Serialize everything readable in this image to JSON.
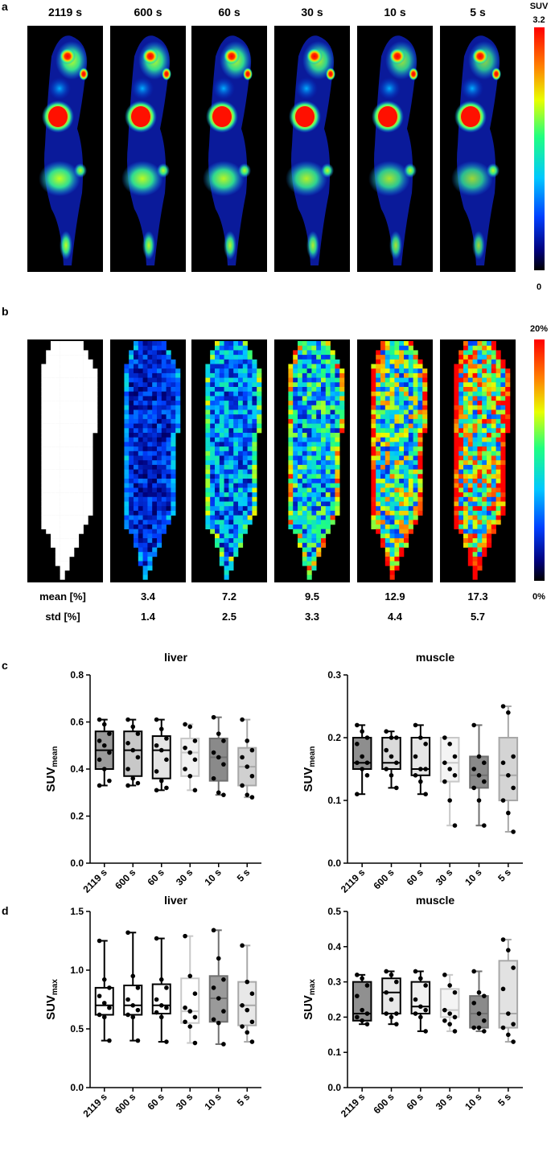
{
  "panels": {
    "a": "a",
    "b": "b",
    "c": "c",
    "d": "d"
  },
  "times": [
    "2119 s",
    "600 s",
    "60 s",
    "30 s",
    "10 s",
    "5 s"
  ],
  "colorbar_a": {
    "title": "SUV",
    "max": "3.2",
    "min": "0"
  },
  "colorbar_b": {
    "max": "20%",
    "min": "0%"
  },
  "stats": {
    "mean_label": "mean  [%]",
    "std_label": "std [%]",
    "mean": [
      "3.4",
      "7.2",
      "9.5",
      "12.9",
      "17.3"
    ],
    "std": [
      "1.4",
      "2.5",
      "3.3",
      "4.4",
      "5.7"
    ]
  },
  "colors": {
    "box_dark": "#707070",
    "box_mid": "#a0a0a0",
    "box_light": "#dcdcdc",
    "jet_red": "#ff0000",
    "jet_blue": "#0000b0"
  },
  "chart_data": [
    {
      "type": "box",
      "panel": "c",
      "title": "liver",
      "ylabel": "SUVmean",
      "ylim": [
        0,
        0.8
      ],
      "yticks": [
        "0.0",
        "0.2",
        "0.4",
        "0.6",
        "0.8"
      ],
      "categories": [
        "2119 s",
        "600 s",
        "60 s",
        "30 s",
        "10 s",
        "5 s"
      ],
      "boxes": [
        {
          "min": 0.33,
          "q1": 0.4,
          "median": 0.48,
          "q3": 0.56,
          "max": 0.61,
          "points": [
            0.61,
            0.59,
            0.55,
            0.52,
            0.5,
            0.47,
            0.44,
            0.4,
            0.35,
            0.33
          ]
        },
        {
          "min": 0.33,
          "q1": 0.37,
          "median": 0.48,
          "q3": 0.56,
          "max": 0.61,
          "points": [
            0.61,
            0.58,
            0.55,
            0.51,
            0.48,
            0.45,
            0.4,
            0.36,
            0.34,
            0.33
          ]
        },
        {
          "min": 0.31,
          "q1": 0.36,
          "median": 0.48,
          "q3": 0.54,
          "max": 0.61,
          "points": [
            0.61,
            0.57,
            0.53,
            0.5,
            0.48,
            0.44,
            0.39,
            0.35,
            0.32,
            0.31
          ]
        },
        {
          "min": 0.31,
          "q1": 0.37,
          "median": 0.47,
          "q3": 0.53,
          "max": 0.59,
          "points": [
            0.59,
            0.58,
            0.52,
            0.49,
            0.47,
            0.44,
            0.4,
            0.37,
            0.31
          ]
        },
        {
          "min": 0.29,
          "q1": 0.35,
          "median": 0.45,
          "q3": 0.53,
          "max": 0.62,
          "points": [
            0.62,
            0.55,
            0.52,
            0.47,
            0.45,
            0.42,
            0.36,
            0.3,
            0.29
          ]
        },
        {
          "min": 0.28,
          "q1": 0.33,
          "median": 0.41,
          "q3": 0.49,
          "max": 0.61,
          "points": [
            0.61,
            0.52,
            0.48,
            0.45,
            0.41,
            0.37,
            0.33,
            0.29,
            0.28
          ]
        }
      ]
    },
    {
      "type": "box",
      "panel": "c",
      "title": "muscle",
      "ylabel": "SUVmean",
      "ylim": [
        0,
        0.3
      ],
      "yticks": [
        "0.0",
        "0.1",
        "0.2",
        "0.3"
      ],
      "categories": [
        "2119 s",
        "600 s",
        "60 s",
        "30 s",
        "10 s",
        "5 s"
      ],
      "boxes": [
        {
          "min": 0.11,
          "q1": 0.15,
          "median": 0.16,
          "q3": 0.2,
          "max": 0.22,
          "points": [
            0.22,
            0.21,
            0.2,
            0.19,
            0.17,
            0.16,
            0.16,
            0.15,
            0.14,
            0.11
          ]
        },
        {
          "min": 0.12,
          "q1": 0.15,
          "median": 0.16,
          "q3": 0.2,
          "max": 0.21,
          "points": [
            0.21,
            0.2,
            0.2,
            0.18,
            0.17,
            0.16,
            0.15,
            0.14,
            0.12
          ]
        },
        {
          "min": 0.11,
          "q1": 0.14,
          "median": 0.15,
          "q3": 0.2,
          "max": 0.22,
          "points": [
            0.22,
            0.2,
            0.19,
            0.17,
            0.15,
            0.15,
            0.14,
            0.13,
            0.11
          ]
        },
        {
          "min": 0.06,
          "q1": 0.13,
          "median": 0.16,
          "q3": 0.2,
          "max": 0.2,
          "points": [
            0.2,
            0.19,
            0.17,
            0.16,
            0.15,
            0.14,
            0.13,
            0.1,
            0.06
          ]
        },
        {
          "min": 0.06,
          "q1": 0.12,
          "median": 0.14,
          "q3": 0.17,
          "max": 0.22,
          "points": [
            0.22,
            0.17,
            0.16,
            0.15,
            0.14,
            0.13,
            0.12,
            0.1,
            0.06
          ]
        },
        {
          "min": 0.05,
          "q1": 0.1,
          "median": 0.14,
          "q3": 0.2,
          "max": 0.25,
          "points": [
            0.25,
            0.24,
            0.17,
            0.16,
            0.14,
            0.12,
            0.1,
            0.08,
            0.05
          ]
        }
      ]
    },
    {
      "type": "box",
      "panel": "d",
      "title": "liver",
      "ylabel": "SUVmax",
      "ylim": [
        0,
        1.5
      ],
      "yticks": [
        "0.0",
        "0.5",
        "1.0",
        "1.5"
      ],
      "categories": [
        "2119 s",
        "600 s",
        "60 s",
        "30 s",
        "10 s",
        "5 s"
      ],
      "boxes": [
        {
          "min": 0.4,
          "q1": 0.62,
          "median": 0.7,
          "q3": 0.85,
          "max": 1.25,
          "points": [
            1.25,
            0.92,
            0.85,
            0.78,
            0.72,
            0.68,
            0.62,
            0.6,
            0.4
          ]
        },
        {
          "min": 0.4,
          "q1": 0.62,
          "median": 0.7,
          "q3": 0.87,
          "max": 1.32,
          "points": [
            1.32,
            0.95,
            0.85,
            0.75,
            0.7,
            0.66,
            0.62,
            0.6,
            0.4
          ]
        },
        {
          "min": 0.39,
          "q1": 0.63,
          "median": 0.7,
          "q3": 0.88,
          "max": 1.27,
          "points": [
            1.27,
            0.92,
            0.85,
            0.75,
            0.7,
            0.68,
            0.64,
            0.6,
            0.39
          ]
        },
        {
          "min": 0.38,
          "q1": 0.55,
          "median": 0.65,
          "q3": 0.93,
          "max": 1.29,
          "points": [
            1.29,
            0.95,
            0.8,
            0.68,
            0.65,
            0.6,
            0.56,
            0.52,
            0.38
          ]
        },
        {
          "min": 0.37,
          "q1": 0.56,
          "median": 0.76,
          "q3": 0.95,
          "max": 1.34,
          "points": [
            1.34,
            1.1,
            0.92,
            0.85,
            0.76,
            0.65,
            0.58,
            0.55,
            0.37
          ]
        },
        {
          "min": 0.39,
          "q1": 0.53,
          "median": 0.7,
          "q3": 0.9,
          "max": 1.21,
          "points": [
            1.21,
            0.9,
            0.8,
            0.7,
            0.66,
            0.56,
            0.52,
            0.47,
            0.39
          ]
        }
      ]
    },
    {
      "type": "box",
      "panel": "d",
      "title": "muscle",
      "ylabel": "SUVmax",
      "ylim": [
        0,
        0.5
      ],
      "yticks": [
        "0.0",
        "0.1",
        "0.2",
        "0.3",
        "0.4",
        "0.5"
      ],
      "categories": [
        "2119 s",
        "600 s",
        "60 s",
        "30 s",
        "10 s",
        "5 s"
      ],
      "boxes": [
        {
          "min": 0.18,
          "q1": 0.19,
          "median": 0.21,
          "q3": 0.3,
          "max": 0.32,
          "points": [
            0.32,
            0.31,
            0.29,
            0.26,
            0.22,
            0.21,
            0.2,
            0.19,
            0.18
          ]
        },
        {
          "min": 0.18,
          "q1": 0.21,
          "median": 0.27,
          "q3": 0.31,
          "max": 0.33,
          "points": [
            0.33,
            0.32,
            0.3,
            0.27,
            0.25,
            0.21,
            0.21,
            0.2,
            0.18
          ]
        },
        {
          "min": 0.16,
          "q1": 0.21,
          "median": 0.23,
          "q3": 0.3,
          "max": 0.33,
          "points": [
            0.33,
            0.31,
            0.29,
            0.25,
            0.23,
            0.22,
            0.21,
            0.2,
            0.16
          ]
        },
        {
          "min": 0.16,
          "q1": 0.2,
          "median": 0.22,
          "q3": 0.28,
          "max": 0.32,
          "points": [
            0.32,
            0.29,
            0.27,
            0.22,
            0.21,
            0.2,
            0.19,
            0.18,
            0.16
          ]
        },
        {
          "min": 0.16,
          "q1": 0.17,
          "median": 0.21,
          "q3": 0.26,
          "max": 0.33,
          "points": [
            0.33,
            0.27,
            0.26,
            0.24,
            0.21,
            0.19,
            0.17,
            0.17,
            0.16
          ]
        },
        {
          "min": 0.13,
          "q1": 0.17,
          "median": 0.21,
          "q3": 0.36,
          "max": 0.42,
          "points": [
            0.42,
            0.39,
            0.34,
            0.28,
            0.21,
            0.18,
            0.17,
            0.15,
            0.13
          ]
        }
      ]
    }
  ]
}
